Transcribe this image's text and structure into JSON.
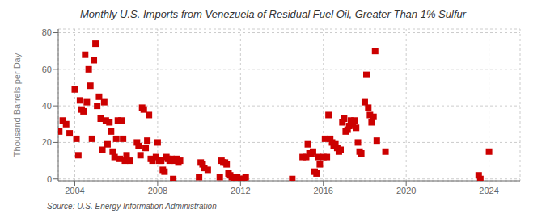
{
  "chart_data": {
    "type": "scatter",
    "title": "Monthly U.S. Imports from Venezuela of Residual Fuel Oil, Greater Than 1% Sulfur",
    "ylabel": "Thousand Barrels per Day",
    "annotation": "Source: U.S. Energy Information Administration",
    "color": "#cc0000",
    "marker": "square",
    "grid": true,
    "xlim": [
      2003.2,
      2025.5
    ],
    "ylim": [
      -1,
      82
    ],
    "xticks": [
      2004,
      2008,
      2012,
      2016,
      2020,
      2024
    ],
    "yticks": [
      0,
      20,
      40,
      60,
      80
    ],
    "x": [
      2003.25,
      2003.42,
      2003.58,
      2003.75,
      2004.0,
      2004.08,
      2004.17,
      2004.25,
      2004.33,
      2004.42,
      2004.5,
      2004.58,
      2004.67,
      2004.75,
      2004.83,
      2004.92,
      2005.0,
      2005.08,
      2005.17,
      2005.25,
      2005.33,
      2005.42,
      2005.5,
      2005.58,
      2005.67,
      2005.75,
      2005.83,
      2005.92,
      2006.0,
      2006.08,
      2006.17,
      2006.25,
      2006.33,
      2006.42,
      2006.5,
      2006.67,
      2007.0,
      2007.08,
      2007.17,
      2007.25,
      2007.33,
      2007.42,
      2007.5,
      2007.58,
      2007.67,
      2007.75,
      2007.92,
      2008.0,
      2008.08,
      2008.17,
      2008.25,
      2008.33,
      2008.42,
      2008.5,
      2008.58,
      2008.67,
      2008.75,
      2008.83,
      2008.92,
      2009.0,
      2009.08,
      2010.0,
      2010.08,
      2010.17,
      2010.25,
      2010.42,
      2011.0,
      2011.08,
      2011.17,
      2011.25,
      2011.33,
      2011.42,
      2011.5,
      2011.58,
      2011.67,
      2011.75,
      2011.83,
      2012.0,
      2012.08,
      2012.17,
      2012.25,
      2014.5,
      2015.0,
      2015.17,
      2015.25,
      2015.33,
      2015.42,
      2015.5,
      2015.58,
      2015.67,
      2015.75,
      2015.83,
      2016.0,
      2016.08,
      2016.17,
      2016.25,
      2016.33,
      2016.42,
      2016.5,
      2016.58,
      2016.67,
      2016.75,
      2016.83,
      2016.92,
      2017.0,
      2017.08,
      2017.17,
      2017.25,
      2017.33,
      2017.42,
      2017.5,
      2017.58,
      2017.67,
      2017.75,
      2017.83,
      2018.0,
      2018.08,
      2018.17,
      2018.25,
      2018.33,
      2018.42,
      2018.5,
      2018.58,
      2019.0,
      2023.5,
      2023.58,
      2024.0
    ],
    "values": [
      26,
      32,
      30,
      25,
      49,
      22,
      13,
      43,
      38,
      37,
      68,
      42,
      60,
      51,
      22,
      65,
      74,
      40,
      45,
      33,
      16,
      42,
      32,
      19,
      31,
      26,
      15,
      12,
      22,
      32,
      11,
      32,
      22,
      10,
      13,
      10,
      20,
      18,
      13,
      39,
      38,
      17,
      21,
      35,
      11,
      10,
      12,
      20,
      10,
      10,
      5,
      4,
      12,
      11,
      10,
      11,
      0,
      10,
      11,
      9,
      10,
      1,
      9,
      8,
      6,
      5,
      1,
      10,
      9,
      9,
      8,
      3,
      2,
      1,
      0,
      0,
      1,
      0,
      0,
      0,
      1,
      0,
      12,
      12,
      19,
      14,
      14,
      15,
      4,
      3,
      12,
      8,
      12,
      22,
      12,
      35,
      22,
      20,
      18,
      19,
      17,
      15,
      16,
      31,
      33,
      26,
      27,
      29,
      32,
      30,
      32,
      28,
      20,
      15,
      14,
      42,
      57,
      39,
      35,
      31,
      34,
      70,
      21,
      15,
      2,
      0,
      15
    ]
  }
}
